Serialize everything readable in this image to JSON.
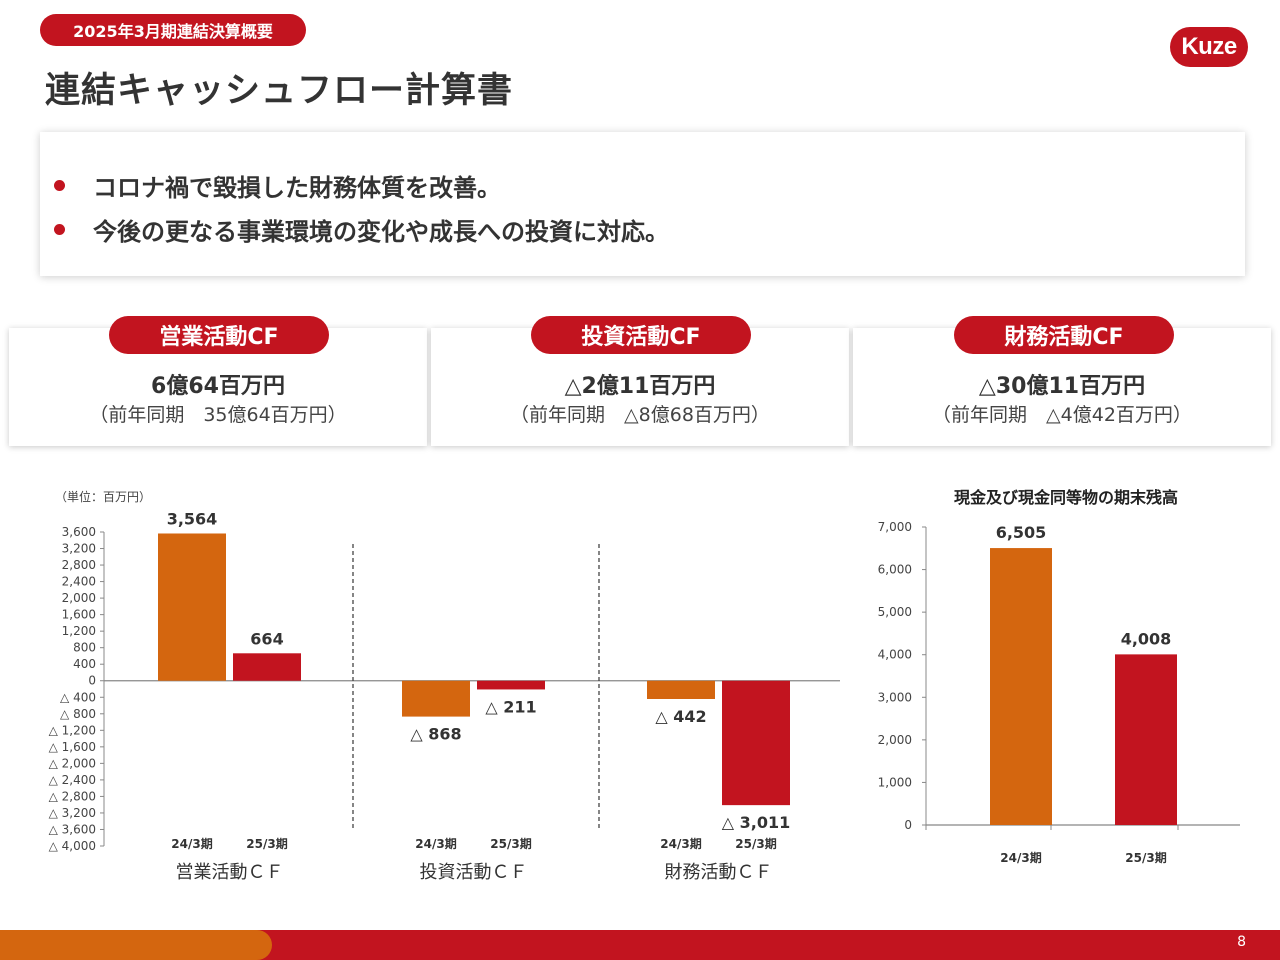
{
  "header": {
    "tag": "2025年3月期連結決算概要",
    "logo": "Kuze",
    "title": "連結キャッシュフロー計算書"
  },
  "summary": {
    "bullets": [
      "コロナ禍で毀損した財務体質を改善。",
      "今後の更なる事業環境の変化や成長への投資に対応。"
    ]
  },
  "cf_cards": [
    {
      "label": "営業活動CF",
      "value": "6億64百万円",
      "prev": "（前年同期　35億64百万円）"
    },
    {
      "label": "投資活動CF",
      "value": "△2億11百万円",
      "prev": "（前年同期　△8億68百万円）"
    },
    {
      "label": "財務活動CF",
      "value": "△30億11百万円",
      "prev": "（前年同期　△4億42百万円）"
    }
  ],
  "colors": {
    "accent": "#c2141f",
    "prior_year": "#d4660f",
    "current_year": "#c2141f"
  },
  "page_number": "8",
  "chart_data": [
    {
      "type": "bar",
      "unit_note": "（単位：百万円）",
      "groups": [
        "営業活動ＣＦ",
        "投資活動ＣＦ",
        "財務活動ＣＦ"
      ],
      "categories": [
        "24/3期",
        "25/3期"
      ],
      "values": [
        [
          3564,
          664
        ],
        [
          -868,
          -211
        ],
        [
          -442,
          -3011
        ]
      ],
      "data_labels": [
        [
          "3,564",
          "664"
        ],
        [
          "△ 868",
          "△ 211"
        ],
        [
          "△ 442",
          "△ 3,011"
        ]
      ],
      "ylim": [
        -4000,
        3600
      ],
      "y_ticks": [
        3600,
        3200,
        2800,
        2400,
        2000,
        1600,
        1200,
        800,
        400,
        0,
        -400,
        -800,
        -1200,
        -1600,
        -2000,
        -2400,
        -2800,
        -3200,
        -3600,
        -4000
      ],
      "y_tick_labels": [
        "3,600",
        "3,200",
        "2,800",
        "2,400",
        "2,000",
        "1,600",
        "1,200",
        "800",
        "400",
        "0",
        "△ 400",
        "△ 800",
        "△ 1,200",
        "△ 1,600",
        "△ 2,000",
        "△ 2,400",
        "△ 2,800",
        "△ 3,200",
        "△ 3,600",
        "△ 4,000"
      ],
      "grid": false
    },
    {
      "type": "bar",
      "title": "現金及び現金同等物の期末残高",
      "categories": [
        "24/3期",
        "25/3期"
      ],
      "values": [
        6505,
        4008
      ],
      "data_labels": [
        "6,505",
        "4,008"
      ],
      "ylim": [
        0,
        7000
      ],
      "y_ticks": [
        0,
        1000,
        2000,
        3000,
        4000,
        5000,
        6000,
        7000
      ],
      "y_tick_labels": [
        "0",
        "1,000",
        "2,000",
        "3,000",
        "4,000",
        "5,000",
        "6,000",
        "7,000"
      ],
      "grid": false
    }
  ]
}
